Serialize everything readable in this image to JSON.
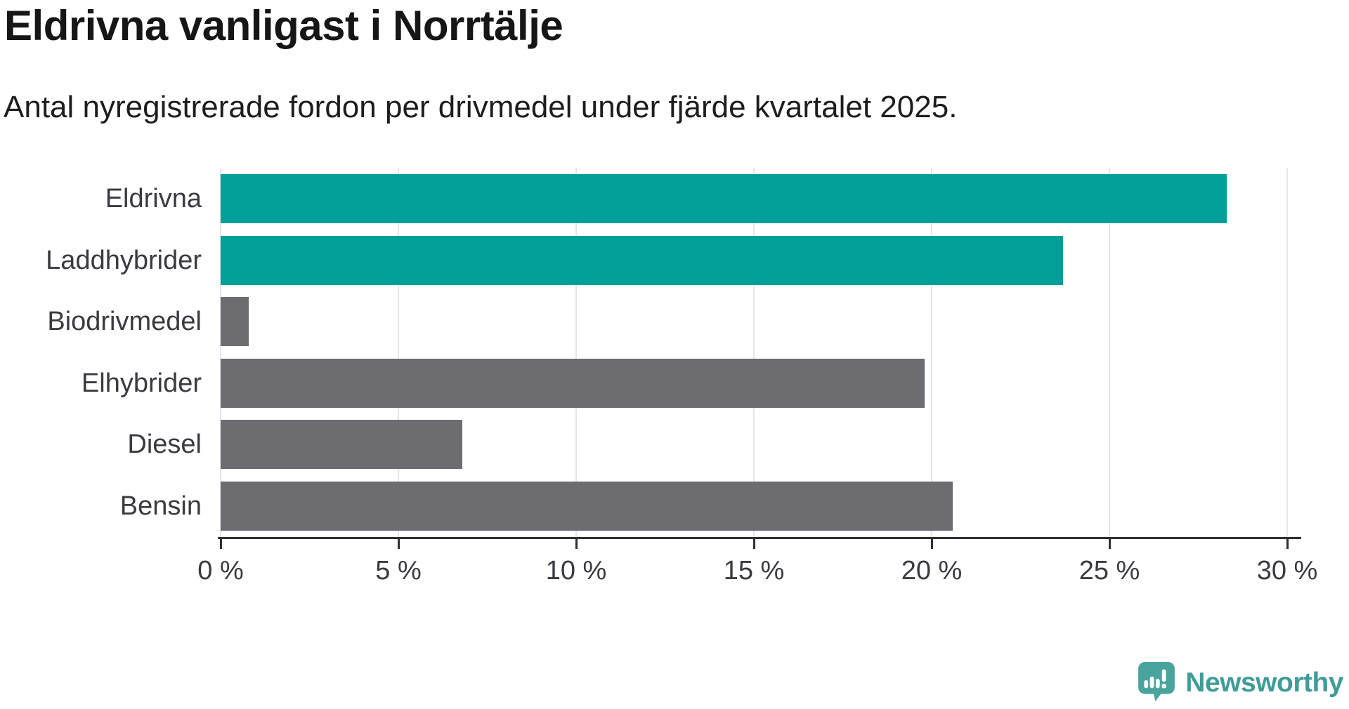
{
  "chart_data": {
    "type": "bar",
    "orientation": "horizontal",
    "title": "Eldrivna vanligast i Norrtälje",
    "subtitle": "Antal nyregistrerade fordon per drivmedel under fjärde kvartalet 2025.",
    "categories": [
      "Eldrivna",
      "Laddhybrider",
      "Biodrivmedel",
      "Elhybrider",
      "Diesel",
      "Bensin"
    ],
    "values": [
      28.3,
      23.7,
      0.8,
      19.8,
      6.8,
      20.6
    ],
    "unit": "%",
    "xlabel": "",
    "ylabel": "",
    "xlim": [
      0,
      30
    ],
    "x_ticks": [
      0,
      5,
      10,
      15,
      20,
      25,
      30
    ],
    "x_tick_labels": [
      "0 %",
      "5 %",
      "10 %",
      "15 %",
      "20 %",
      "25 %",
      "30 %"
    ],
    "grid": "vertical-gridlines-on",
    "legend": "none",
    "bar_colors": [
      "#00a099",
      "#00a099",
      "#6c6c71",
      "#6c6c71",
      "#6c6c71",
      "#6c6c71"
    ],
    "highlight_color": "#00a099",
    "base_color": "#6c6c71"
  },
  "colors": {
    "background": "#ffffff",
    "axis": "#2f2f35",
    "gridline": "#e6e6e6",
    "label_text": "#3a3a40",
    "title_text": "#161616",
    "logo_teal": "#3f9c97",
    "logo_icon_teal": "#4aa49e"
  },
  "branding": {
    "name": "Newsworthy",
    "icon": "newsworthy-speech-bubble-bar-chart-icon"
  }
}
